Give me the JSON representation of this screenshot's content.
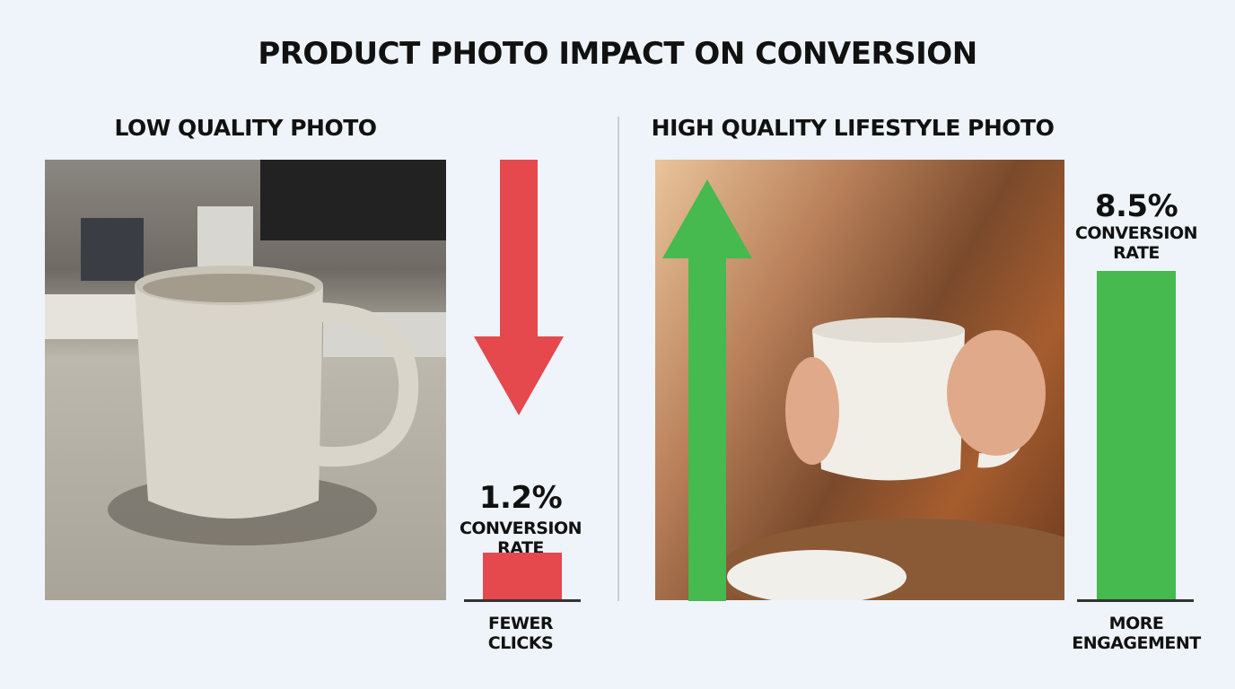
{
  "title": "PRODUCT PHOTO IMPACT ON CONVERSION",
  "left": {
    "heading": "LOW QUALITY PHOTO",
    "value": "1.2%",
    "label_line1": "CONVERSION",
    "label_line2": "RATE",
    "footer_line1": "FEWER",
    "footer_line2": "CLICKS",
    "arrow": "arrow-down"
  },
  "right": {
    "heading": "HIGH QUALITY LIFESTYLE PHOTO",
    "value": "8.5%",
    "label_line1": "CONVERSION",
    "label_line2": "RATE",
    "footer_line1": "MORE",
    "footer_line2": "ENGAGEMENT",
    "arrow": "arrow-up"
  },
  "colors": {
    "low": "#e5484d",
    "high": "#46b94f",
    "background": "#eef4f9"
  },
  "chart_data": {
    "type": "bar",
    "categories": [
      "LOW QUALITY PHOTO",
      "HIGH QUALITY LIFESTYLE PHOTO"
    ],
    "values": [
      1.2,
      8.5
    ],
    "unit": "%",
    "ylabel": "CONVERSION RATE"
  }
}
